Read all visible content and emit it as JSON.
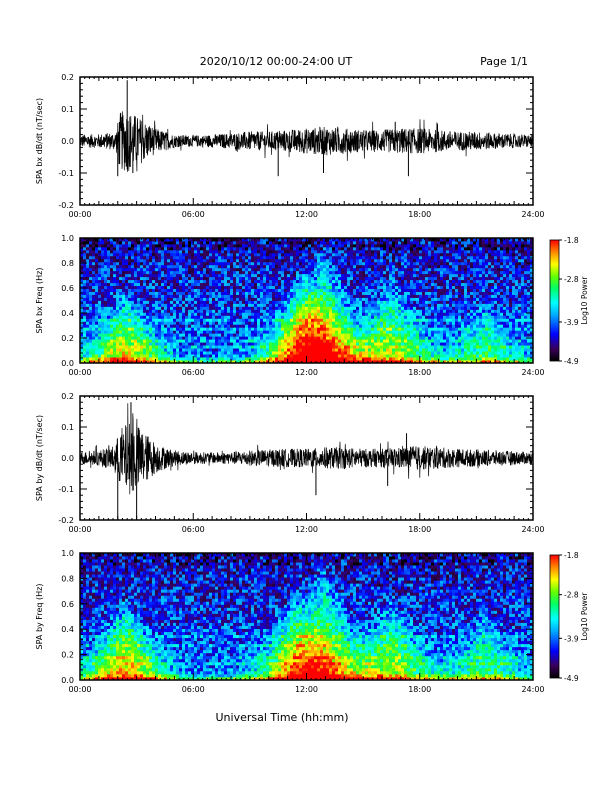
{
  "header": {
    "title": "2020/10/12  00:00-24:00 UT",
    "page": "Page 1/1"
  },
  "footer": {
    "xlabel": "Universal Time (hh:mm)"
  },
  "colors": {
    "trace": "#000000",
    "colormap": [
      "#000000",
      "#3a005a",
      "#0000ff",
      "#00aaff",
      "#00ffff",
      "#00ff66",
      "#66ff00",
      "#ffff00",
      "#ff8800",
      "#ff0000"
    ]
  },
  "chart_data": [
    {
      "type": "line",
      "id": "bx-wave",
      "ylabel": "SPA bx dB/dt (nT/sec)",
      "xlim": [
        0,
        24
      ],
      "ylim": [
        -0.2,
        0.2
      ],
      "yticks": [
        "-0.2",
        "-0.1",
        "0.0",
        "0.1",
        "0.2"
      ],
      "ytick_values": [
        -0.2,
        -0.1,
        0.0,
        0.1,
        0.2
      ],
      "xticks": [
        "00:00",
        "06:00",
        "12:00",
        "18:00",
        "24:00"
      ],
      "xtick_values": [
        0,
        6,
        12,
        18,
        24
      ],
      "envelope": {
        "x": [
          0,
          1,
          1.9,
          2.1,
          2.5,
          3,
          3.5,
          4,
          4.5,
          5,
          6,
          7,
          8,
          9,
          10,
          11,
          12,
          13,
          14,
          15,
          16,
          17,
          18,
          19,
          20,
          21,
          22,
          23,
          24
        ],
        "amplitude": [
          0.02,
          0.022,
          0.03,
          0.09,
          0.1,
          0.08,
          0.06,
          0.04,
          0.03,
          0.02,
          0.018,
          0.02,
          0.025,
          0.03,
          0.03,
          0.035,
          0.04,
          0.045,
          0.04,
          0.035,
          0.035,
          0.04,
          0.04,
          0.035,
          0.03,
          0.03,
          0.025,
          0.022,
          0.02
        ]
      },
      "spikes": [
        {
          "x": 2.5,
          "y": 0.19
        },
        {
          "x": 2.0,
          "y": -0.11
        },
        {
          "x": 2.8,
          "y": -0.1
        },
        {
          "x": 10.5,
          "y": -0.11
        },
        {
          "x": 12.9,
          "y": -0.1
        },
        {
          "x": 17.4,
          "y": -0.11
        },
        {
          "x": 16.7,
          "y": 0.06
        }
      ]
    },
    {
      "type": "heatmap",
      "id": "bx-spec",
      "ylabel": "SPA bx Freq (Hz)",
      "colorbar_label": "Log10 Power",
      "colorbar_ticks": [
        "-1.8",
        "-2.8",
        "-3.9",
        "-4.9"
      ],
      "colorbar_values": [
        -1.8,
        -2.8,
        -3.9,
        -4.9
      ],
      "xlim": [
        0,
        24
      ],
      "ylim": [
        0,
        1.0
      ],
      "yticks": [
        "0.0",
        "0.2",
        "0.4",
        "0.6",
        "0.8",
        "1.0"
      ],
      "ytick_values": [
        0.0,
        0.2,
        0.4,
        0.6,
        0.8,
        1.0
      ],
      "xticks": [
        "00:00",
        "06:00",
        "12:00",
        "18:00",
        "24:00"
      ],
      "xtick_values": [
        0,
        6,
        12,
        18,
        24
      ],
      "features": {
        "bursts": [
          {
            "x": 2.4,
            "fmax": 0.55,
            "strength": 0.55
          },
          {
            "x": 11.8,
            "fmax": 0.75,
            "strength": 0.5
          },
          {
            "x": 12.9,
            "fmax": 0.95,
            "strength": 0.55
          },
          {
            "x": 16.5,
            "fmax": 0.7,
            "strength": 0.45
          },
          {
            "x": 21.5,
            "fmax": 0.5,
            "strength": 0.3
          }
        ],
        "lines_hz": [
          0.12,
          0.18,
          0.28,
          0.35
        ]
      }
    },
    {
      "type": "line",
      "id": "by-wave",
      "ylabel": "SPA by dB/dt (nT/sec)",
      "xlim": [
        0,
        24
      ],
      "ylim": [
        -0.2,
        0.2
      ],
      "yticks": [
        "-0.2",
        "-0.1",
        "0.0",
        "0.1",
        "0.2"
      ],
      "ytick_values": [
        -0.2,
        -0.1,
        0.0,
        0.1,
        0.2
      ],
      "xticks": [
        "00:00",
        "06:00",
        "12:00",
        "18:00",
        "24:00"
      ],
      "xtick_values": [
        0,
        6,
        12,
        18,
        24
      ],
      "envelope": {
        "x": [
          0,
          1,
          1.8,
          2.2,
          2.7,
          3,
          3.5,
          4,
          4.5,
          5,
          6,
          7,
          8,
          9,
          10,
          11,
          12,
          13,
          14,
          15,
          16,
          17,
          18,
          19,
          20,
          21,
          22,
          23,
          24
        ],
        "amplitude": [
          0.02,
          0.025,
          0.04,
          0.1,
          0.12,
          0.11,
          0.08,
          0.05,
          0.035,
          0.025,
          0.02,
          0.018,
          0.02,
          0.025,
          0.028,
          0.03,
          0.03,
          0.035,
          0.035,
          0.03,
          0.03,
          0.035,
          0.04,
          0.035,
          0.03,
          0.028,
          0.025,
          0.022,
          0.02
        ]
      },
      "spikes": [
        {
          "x": 2.7,
          "y": 0.18
        },
        {
          "x": 2.0,
          "y": -0.2
        },
        {
          "x": 3.0,
          "y": -0.2
        },
        {
          "x": 12.5,
          "y": -0.12
        },
        {
          "x": 17.3,
          "y": 0.08
        },
        {
          "x": 16.3,
          "y": -0.09
        }
      ]
    },
    {
      "type": "heatmap",
      "id": "by-spec",
      "ylabel": "SPA by Freq (Hz)",
      "colorbar_label": "Log10 Power",
      "colorbar_ticks": [
        "-1.8",
        "-2.8",
        "-3.9",
        "-4.9"
      ],
      "colorbar_values": [
        -1.8,
        -2.8,
        -3.9,
        -4.9
      ],
      "xlim": [
        0,
        24
      ],
      "ylim": [
        0,
        1.0
      ],
      "yticks": [
        "0.0",
        "0.2",
        "0.4",
        "0.6",
        "0.8",
        "1.0"
      ],
      "ytick_values": [
        0.0,
        0.2,
        0.4,
        0.6,
        0.8,
        1.0
      ],
      "xticks": [
        "00:00",
        "06:00",
        "12:00",
        "18:00",
        "24:00"
      ],
      "xtick_values": [
        0,
        6,
        12,
        18,
        24
      ],
      "features": {
        "bursts": [
          {
            "x": 2.4,
            "fmax": 0.6,
            "strength": 0.6
          },
          {
            "x": 11.5,
            "fmax": 0.7,
            "strength": 0.45
          },
          {
            "x": 12.9,
            "fmax": 0.95,
            "strength": 0.5
          },
          {
            "x": 16.5,
            "fmax": 0.65,
            "strength": 0.45
          },
          {
            "x": 21.5,
            "fmax": 0.55,
            "strength": 0.3
          }
        ],
        "lines_hz": [
          0.12,
          0.18,
          0.28,
          0.35
        ]
      }
    }
  ]
}
